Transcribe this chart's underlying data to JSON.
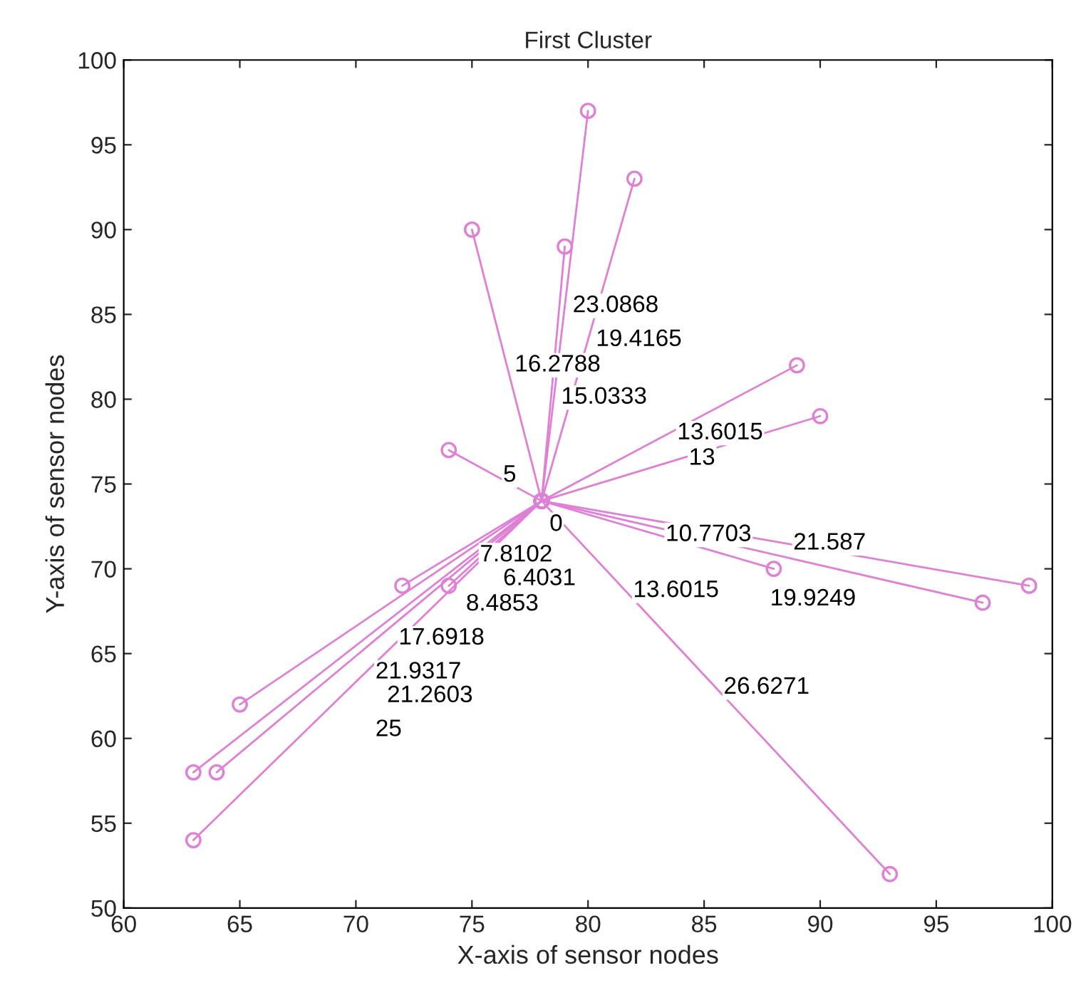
{
  "chart_data": {
    "type": "line",
    "title": "First Cluster",
    "xlabel": "X-axis of sensor nodes",
    "ylabel": "Y-axis of sensor nodes",
    "xlim": [
      60,
      100
    ],
    "xticks": [
      60,
      65,
      70,
      75,
      80,
      85,
      90,
      95,
      100
    ],
    "ylim": [
      50,
      100
    ],
    "yticks": [
      50,
      55,
      60,
      65,
      70,
      75,
      80,
      85,
      90,
      95,
      100
    ],
    "grid": false,
    "marker": "circle",
    "line_style": "solid",
    "series": [
      {
        "color": "#e07fd6",
        "x": [
          78,
          80
        ],
        "values": [
          74,
          97
        ]
      },
      {
        "color": "#e07fd6",
        "x": [
          78,
          82
        ],
        "values": [
          74,
          93
        ]
      },
      {
        "color": "#e07fd6",
        "x": [
          78,
          75
        ],
        "values": [
          74,
          90
        ]
      },
      {
        "color": "#e07fd6",
        "x": [
          78,
          79
        ],
        "values": [
          74,
          89
        ]
      },
      {
        "color": "#e07fd6",
        "x": [
          78,
          89
        ],
        "values": [
          74,
          82
        ]
      },
      {
        "color": "#e07fd6",
        "x": [
          78,
          90
        ],
        "values": [
          74,
          79
        ]
      },
      {
        "color": "#e07fd6",
        "x": [
          78,
          74
        ],
        "values": [
          74,
          77
        ]
      },
      {
        "color": "#e07fd6",
        "x": [
          78,
          88
        ],
        "values": [
          74,
          70
        ]
      },
      {
        "color": "#e07fd6",
        "x": [
          78,
          97
        ],
        "values": [
          74,
          68
        ]
      },
      {
        "color": "#e07fd6",
        "x": [
          78,
          99
        ],
        "values": [
          74,
          69
        ]
      },
      {
        "color": "#e07fd6",
        "x": [
          78,
          93
        ],
        "values": [
          74,
          52
        ]
      },
      {
        "color": "#e07fd6",
        "x": [
          78,
          74
        ],
        "values": [
          74,
          69
        ]
      },
      {
        "color": "#e07fd6",
        "x": [
          78,
          72
        ],
        "values": [
          74,
          69
        ]
      },
      {
        "color": "#e07fd6",
        "x": [
          78,
          65
        ],
        "values": [
          74,
          62
        ]
      },
      {
        "color": "#e07fd6",
        "x": [
          78,
          63
        ],
        "values": [
          74,
          58
        ]
      },
      {
        "color": "#e07fd6",
        "x": [
          78,
          64
        ],
        "values": [
          74,
          58
        ]
      },
      {
        "color": "#e07fd6",
        "x": [
          78,
          63
        ],
        "values": [
          74,
          54
        ]
      }
    ],
    "annotations": [
      {
        "text": "0",
        "x": 78,
        "y": 74
      },
      {
        "text": "5",
        "x": 76,
        "y": 75.5
      },
      {
        "text": "23.0868",
        "x": 79,
        "y": 85.5
      },
      {
        "text": "19.4165",
        "x": 80,
        "y": 83.5
      },
      {
        "text": "16.2788",
        "x": 76.5,
        "y": 82
      },
      {
        "text": "15.0333",
        "x": 78.5,
        "y": 81.5
      },
      {
        "text": "13.6015",
        "x": 83.5,
        "y": 78
      },
      {
        "text": "13",
        "x": 84,
        "y": 76.5
      },
      {
        "text": "10.7703",
        "x": 83,
        "y": 72
      },
      {
        "text": "21.587",
        "x": 88.5,
        "y": 71.5
      },
      {
        "text": "19.9249",
        "x": 87.5,
        "y": 71
      },
      {
        "text": "13.6015",
        "x": 81.6,
        "y": 68.7
      },
      {
        "text": "26.6271",
        "x": 85.5,
        "y": 63
      },
      {
        "text": "7.8102",
        "x": 75,
        "y": 71.5
      },
      {
        "text": "6.4031",
        "x": 76,
        "y": 71.5
      },
      {
        "text": "8.4853",
        "x": 74.4,
        "y": 70.7
      },
      {
        "text": "17.6918",
        "x": 71.5,
        "y": 68
      },
      {
        "text": "21.9317",
        "x": 70.5,
        "y": 66
      },
      {
        "text": "21.2603",
        "x": 71,
        "y": 66
      },
      {
        "text": "25",
        "x": 70.5,
        "y": 64
      }
    ]
  }
}
